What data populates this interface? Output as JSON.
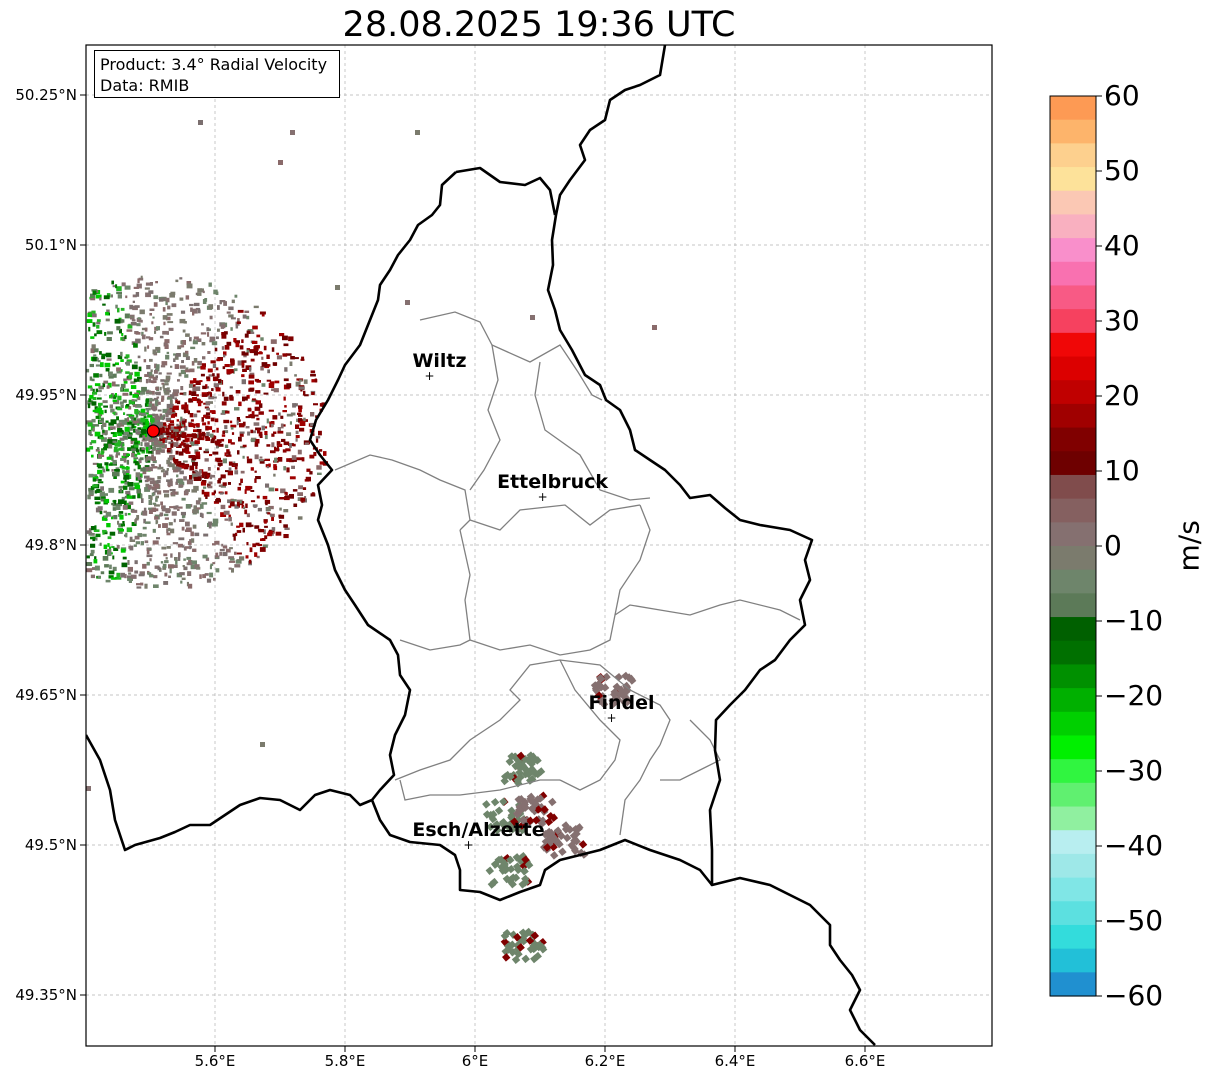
{
  "title": "28.08.2025 19:36 UTC",
  "info": {
    "product": "Product: 3.4° Radial Velocity",
    "data_source": "Data: RMIB"
  },
  "lat_labels": [
    "50.25°N",
    "50.1°N",
    "49.95°N",
    "49.8°N",
    "49.65°N",
    "49.5°N",
    "49.35°N"
  ],
  "lon_labels": [
    "5.6°E",
    "5.8°E",
    "6°E",
    "6.2°E",
    "6.4°E",
    "6.6°E"
  ],
  "cities": [
    {
      "name": "Wiltz",
      "lon": 5.93,
      "lat": 49.969
    },
    {
      "name": "Ettelbruck",
      "lon": 6.104,
      "lat": 49.848
    },
    {
      "name": "Findel",
      "lon": 6.21,
      "lat": 49.627
    },
    {
      "name": "Esch/Alzette",
      "lon": 5.99,
      "lat": 49.5
    }
  ],
  "radar_site": {
    "lon": 5.505,
    "lat": 49.914
  },
  "colorbar": {
    "unit": "m/s",
    "ticks": [
      "60",
      "50",
      "40",
      "30",
      "20",
      "10",
      "0",
      "−10",
      "−20",
      "−30",
      "−40",
      "−50",
      "−60"
    ],
    "colors": [
      "#fd9a54",
      "#fdb46b",
      "#fdd08e",
      "#fde29a",
      "#fbc8b4",
      "#f9b0c0",
      "#f98fcb",
      "#f971b0",
      "#f85a85",
      "#f6415f",
      "#f00707",
      "#dc0000",
      "#c00000",
      "#a00000",
      "#800000",
      "#6e0000",
      "#804c4c",
      "#856060",
      "#857070",
      "#7b7b6d",
      "#6e856b",
      "#5c7a58",
      "#006000",
      "#007000",
      "#009000",
      "#00b000",
      "#00d000",
      "#00f000",
      "#30f540",
      "#60f070",
      "#90f0a0",
      "#b8eef0",
      "#9ee8e8",
      "#80e6e6",
      "#5ce0e0",
      "#33dcdc",
      "#22c0d8",
      "#2090d0"
    ]
  },
  "colors": {
    "border": "#000000",
    "cantons": "#808080",
    "grid": "#b4b4b4"
  }
}
